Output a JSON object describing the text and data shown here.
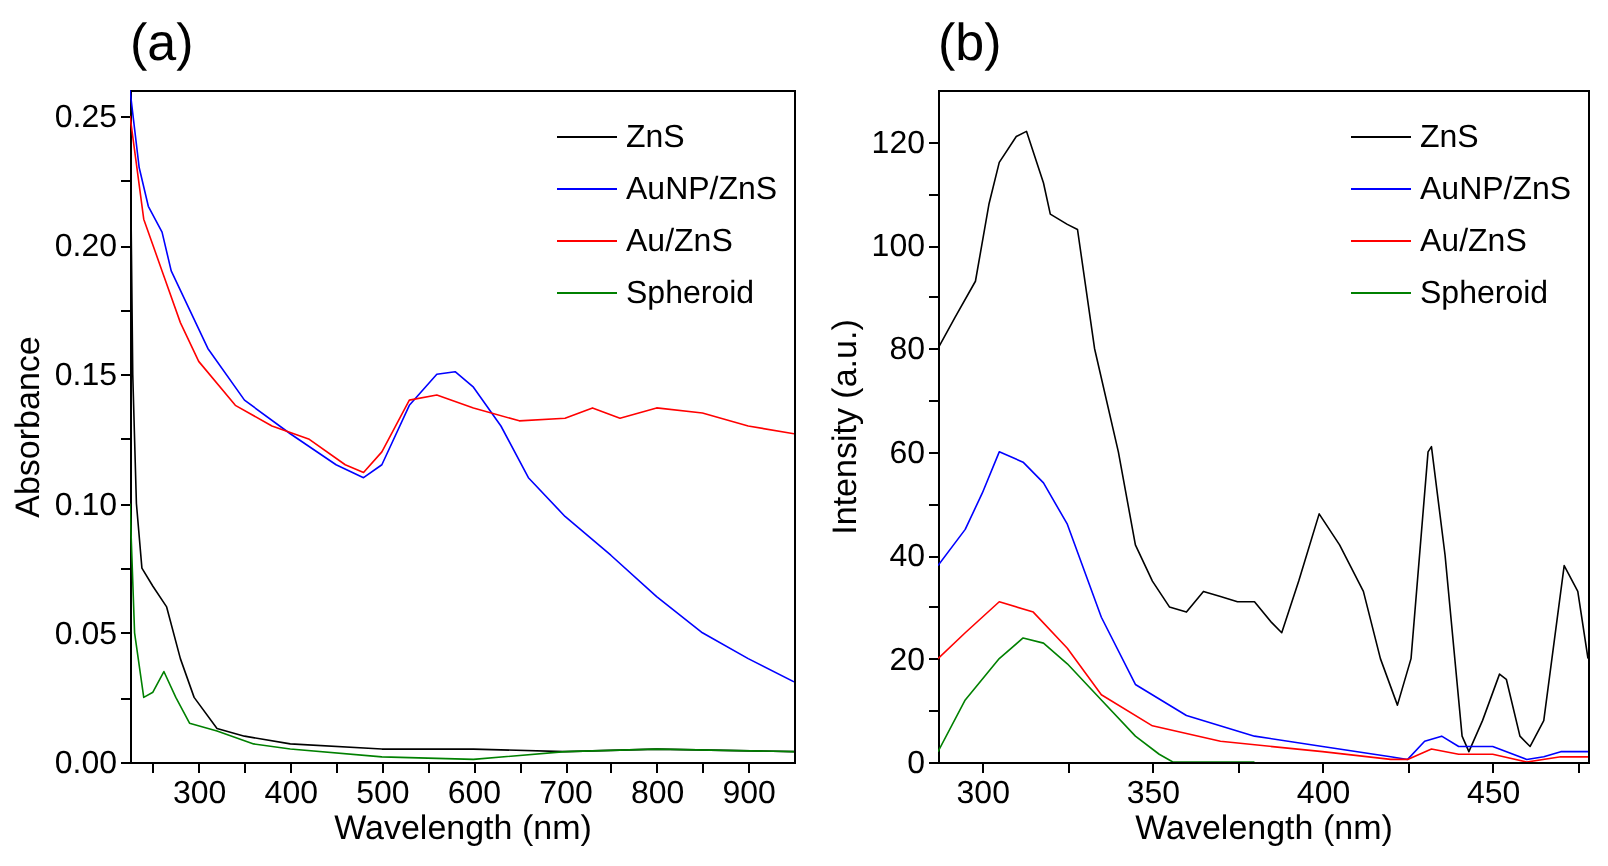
{
  "chart_data": [
    {
      "type": "line",
      "title": "(a)",
      "xlabel": "Wavelength (nm)",
      "ylabel": "Absorbance",
      "xlim": [
        225,
        950
      ],
      "ylim": [
        0,
        0.26
      ],
      "xticks": [
        {
          "value": 250,
          "label": null
        },
        300,
        {
          "value": 350,
          "label": null
        },
        400,
        {
          "value": 450,
          "label": null
        },
        500,
        {
          "value": 550,
          "label": null
        },
        600,
        {
          "value": 650,
          "label": null
        },
        700,
        {
          "value": 750,
          "label": null
        },
        800,
        {
          "value": 850,
          "label": null
        },
        900
      ],
      "yticks": [
        {
          "value": 0,
          "label": "0.00"
        },
        {
          "value": 0.025,
          "label": null
        },
        0.05,
        {
          "value": 0.075,
          "label": null
        },
        {
          "value": 0.1,
          "label": "0.10"
        },
        {
          "value": 0.125,
          "label": null
        },
        0.15,
        {
          "value": 0.175,
          "label": null
        },
        {
          "value": 0.2,
          "label": "0.20"
        },
        {
          "value": 0.225,
          "label": null
        },
        0.25
      ],
      "legend": "top right",
      "grid": false,
      "series": [
        {
          "name": "ZnS",
          "color": "#000000",
          "x": [
            225,
            228,
            232,
            238,
            250,
            265,
            280,
            295,
            320,
            350,
            400,
            500,
            600,
            700,
            800,
            950
          ],
          "values": [
            0.25,
            0.15,
            0.1,
            0.075,
            0.068,
            0.06,
            0.04,
            0.025,
            0.013,
            0.01,
            0.007,
            0.005,
            0.005,
            0.004,
            0.005,
            0.004
          ]
        },
        {
          "name": "AuNP/ZnS",
          "color": "#0000ff",
          "x": [
            225,
            235,
            245,
            260,
            270,
            290,
            310,
            350,
            400,
            450,
            480,
            500,
            530,
            560,
            580,
            600,
            630,
            660,
            700,
            750,
            800,
            850,
            900,
            950
          ],
          "values": [
            0.26,
            0.23,
            0.215,
            0.205,
            0.19,
            0.175,
            0.16,
            0.14,
            0.127,
            0.115,
            0.11,
            0.115,
            0.138,
            0.15,
            0.151,
            0.145,
            0.13,
            0.11,
            0.095,
            0.08,
            0.064,
            0.05,
            0.04,
            0.031
          ]
        },
        {
          "name": "Au/ZnS",
          "color": "#ff0000",
          "x": [
            225,
            240,
            260,
            280,
            300,
            340,
            380,
            420,
            460,
            480,
            500,
            530,
            560,
            600,
            650,
            700,
            730,
            760,
            800,
            850,
            900,
            950
          ],
          "values": [
            0.25,
            0.21,
            0.19,
            0.17,
            0.155,
            0.138,
            0.13,
            0.125,
            0.115,
            0.112,
            0.12,
            0.14,
            0.142,
            0.137,
            0.132,
            0.133,
            0.137,
            0.133,
            0.137,
            0.135,
            0.13,
            0.127
          ]
        },
        {
          "name": "Spheroid",
          "color": "#008000",
          "x": [
            225,
            230,
            240,
            250,
            262,
            275,
            290,
            320,
            360,
            400,
            500,
            600,
            700,
            800,
            950
          ],
          "values": [
            0.1,
            0.05,
            0.025,
            0.027,
            0.035,
            0.025,
            0.015,
            0.012,
            0.007,
            0.005,
            0.002,
            0.001,
            0.004,
            0.005,
            0.004
          ]
        }
      ]
    },
    {
      "type": "line",
      "title": "(b)",
      "xlabel": "Wavelength (nm)",
      "ylabel": "Intensity (a.u.)",
      "xlim": [
        287,
        478
      ],
      "ylim": [
        0,
        130
      ],
      "xticks": [
        300,
        {
          "value": 325,
          "label": null
        },
        350,
        {
          "value": 375,
          "label": null
        },
        400,
        {
          "value": 425,
          "label": null
        },
        450,
        {
          "value": 475,
          "label": null
        }
      ],
      "yticks": [
        0,
        {
          "value": 10,
          "label": null
        },
        20,
        {
          "value": 30,
          "label": null
        },
        40,
        {
          "value": 50,
          "label": null
        },
        60,
        {
          "value": 70,
          "label": null
        },
        80,
        {
          "value": 90,
          "label": null
        },
        100,
        {
          "value": 110,
          "label": null
        },
        120
      ],
      "legend": "top right",
      "grid": false,
      "series": [
        {
          "name": "ZnS",
          "color": "#000000",
          "x": [
            287,
            292,
            298,
            302,
            305,
            310,
            313,
            318,
            320,
            325,
            328,
            333,
            340,
            345,
            350,
            355,
            360,
            365,
            370,
            375,
            380,
            385,
            388,
            393,
            399,
            405,
            412,
            417,
            422,
            426,
            431,
            432,
            436,
            441,
            443,
            447,
            452,
            454,
            458,
            461,
            465,
            471,
            475,
            478
          ],
          "values": [
            80,
            86,
            93,
            108,
            116,
            121,
            122,
            112,
            106,
            104,
            103,
            80,
            60,
            42,
            35,
            30,
            29,
            33,
            32,
            31,
            31,
            27,
            25,
            35,
            48,
            42,
            33,
            20,
            11,
            20,
            60,
            61,
            40,
            5,
            2,
            8,
            17,
            16,
            5,
            3,
            8,
            38,
            33,
            20
          ]
        },
        {
          "name": "AuNP/ZnS",
          "color": "#0000ff",
          "x": [
            287,
            295,
            300,
            305,
            312,
            318,
            325,
            335,
            345,
            360,
            380,
            400,
            420,
            425,
            430,
            435,
            440,
            450,
            460,
            465,
            470,
            478
          ],
          "values": [
            38,
            45,
            52,
            60,
            58,
            54,
            46,
            28,
            15,
            9,
            5,
            3,
            1,
            0.5,
            4,
            5,
            3,
            3,
            0.5,
            1,
            2,
            2
          ]
        },
        {
          "name": "Au/ZnS",
          "color": "#ff0000",
          "x": [
            287,
            295,
            305,
            315,
            325,
            335,
            350,
            370,
            400,
            420,
            425,
            432,
            440,
            450,
            460,
            470,
            478
          ],
          "values": [
            20,
            25,
            31,
            29,
            22,
            13,
            7,
            4,
            2,
            0.5,
            0.5,
            2.5,
            1.5,
            1.5,
            0,
            1,
            1
          ]
        },
        {
          "name": "Spheroid",
          "color": "#008000",
          "x": [
            287,
            295,
            305,
            312,
            318,
            325,
            335,
            345,
            352,
            356,
            380
          ],
          "values": [
            2,
            12,
            20,
            24,
            23,
            19,
            12,
            5,
            1.5,
            0,
            0
          ]
        }
      ]
    }
  ]
}
